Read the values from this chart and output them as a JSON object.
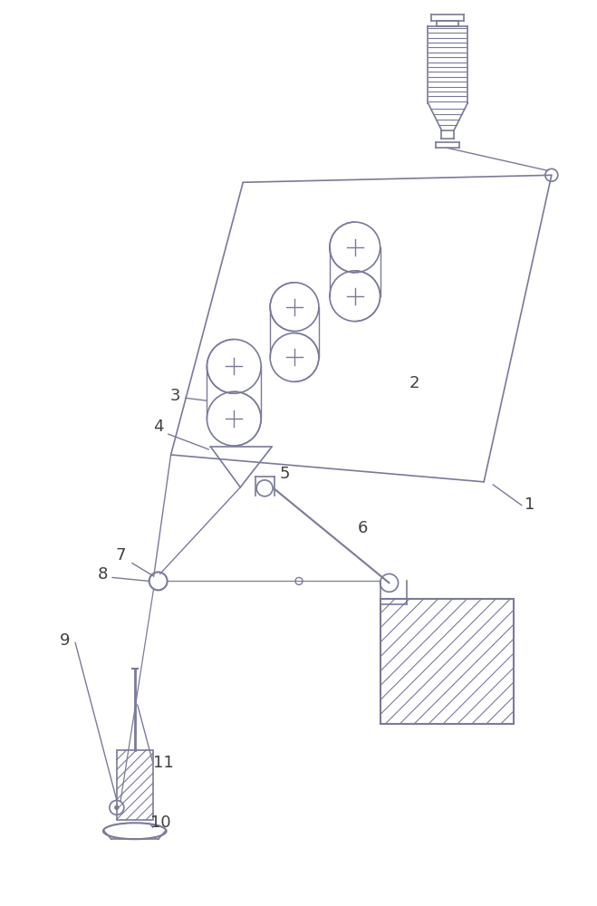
{
  "bg_color": "#ffffff",
  "line_color": "#7a7a9a",
  "label_color": "#404040",
  "fig_width": 6.59,
  "fig_height": 10.0,
  "dpi": 100
}
